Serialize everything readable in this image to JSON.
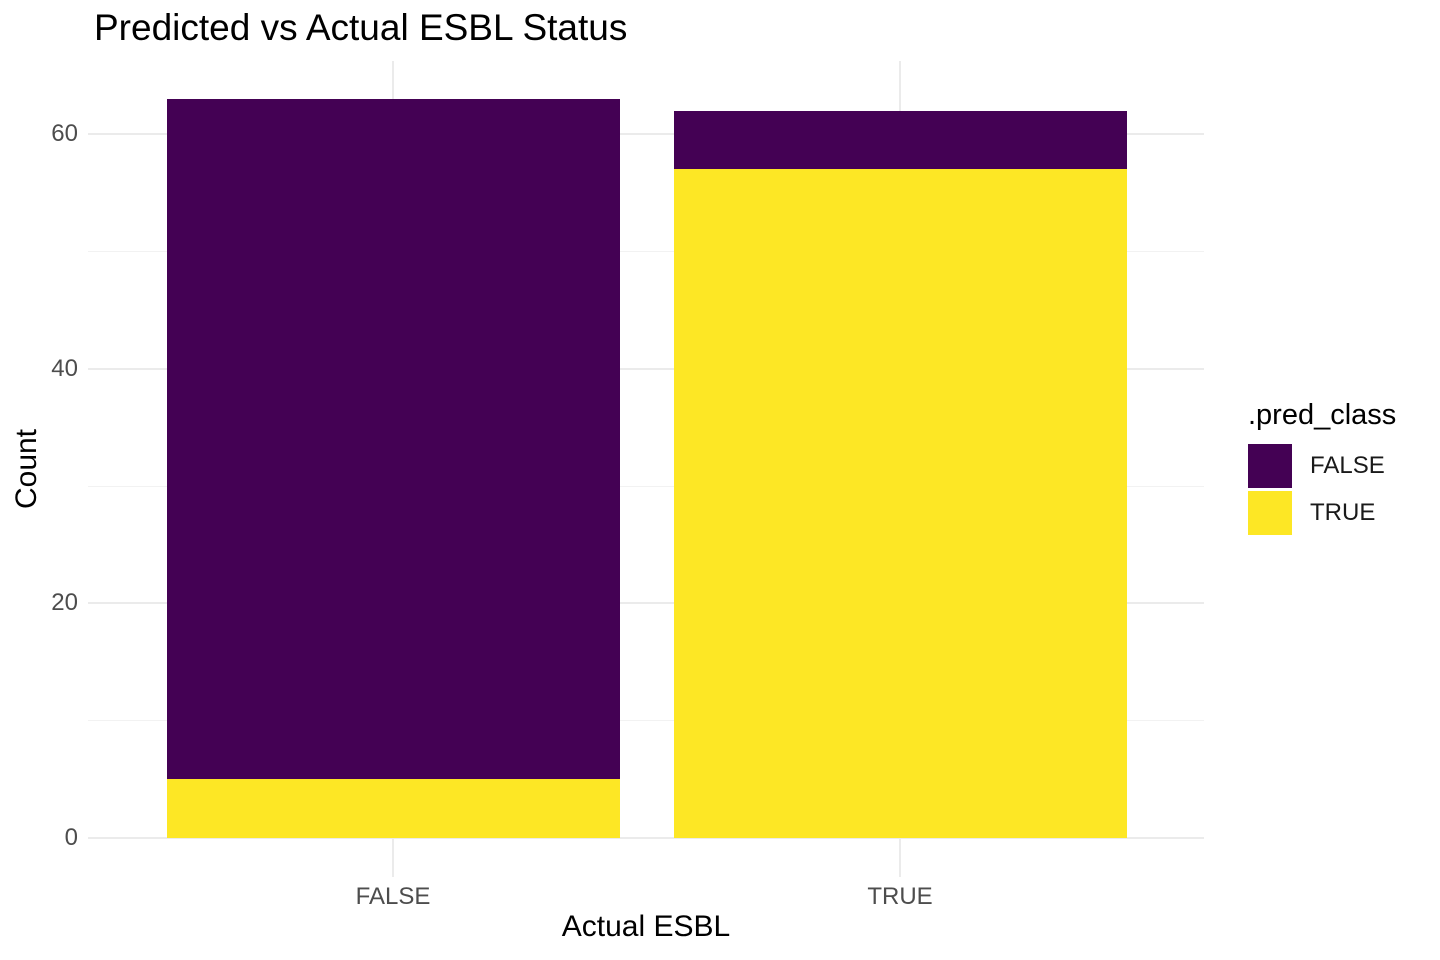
{
  "chart_data": {
    "type": "bar",
    "variant": "stacked",
    "title": "Predicted vs Actual ESBL Status",
    "xlabel": "Actual ESBL",
    "ylabel": "Count",
    "categories": [
      "FALSE",
      "TRUE"
    ],
    "series": [
      {
        "name": "TRUE",
        "color": "#FDE725",
        "values": [
          5,
          57
        ]
      },
      {
        "name": "FALSE",
        "color": "#440154",
        "values": [
          58,
          5
        ]
      }
    ],
    "stack_totals": [
      63,
      62
    ],
    "y_axis": {
      "major_ticks": [
        0,
        20,
        40,
        60
      ],
      "minor_ticks": [
        10,
        30,
        50
      ],
      "range": [
        0,
        66.2
      ]
    },
    "grid": "major+minor",
    "legend": {
      "title": ".pred_class",
      "position": "right",
      "entries": [
        {
          "label": "FALSE",
          "color": "#440154"
        },
        {
          "label": "TRUE",
          "color": "#FDE725"
        }
      ]
    },
    "colors": {
      "grid_major": "#EBEBEB",
      "grid_minor": "#F2F2F2",
      "tick_label": "#4D4D4D",
      "text": "#000000",
      "background": "#FFFFFF"
    }
  }
}
